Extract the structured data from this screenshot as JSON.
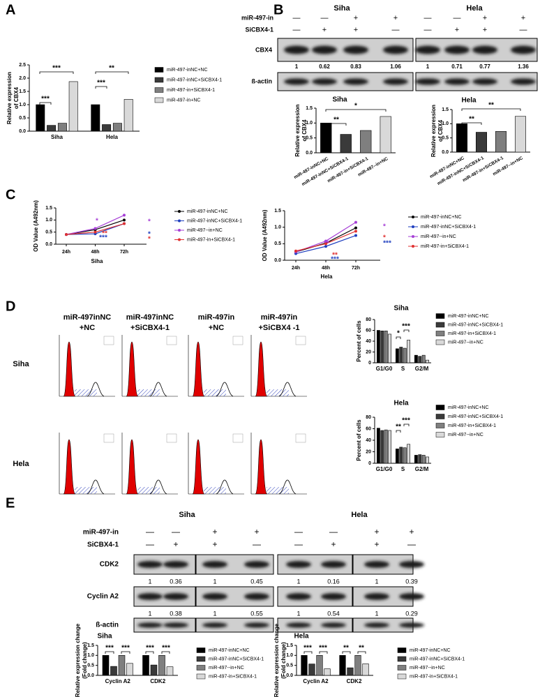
{
  "panel_labels": [
    "A",
    "B",
    "C",
    "D",
    "E"
  ],
  "blot_b": {
    "row_labels": [
      "miR-497-in",
      "SiCBX4-1"
    ],
    "cell_lines": [
      "Siha",
      "Hela"
    ],
    "mir_signs": [
      "—",
      "—",
      "+",
      "+",
      "—",
      "—",
      "+",
      "+"
    ],
    "si_signs": [
      "—",
      "+",
      "+",
      "—",
      "—",
      "+",
      "+",
      "—"
    ],
    "proteins": [
      "CBX4",
      "ß-actin"
    ],
    "ratios": [
      1,
      0.62,
      0.83,
      1.06,
      1,
      0.71,
      0.77,
      1.36
    ]
  },
  "flow_d": {
    "columns": [
      [
        "miR-497inNC",
        "+NC"
      ],
      [
        "miR-497inNC",
        "+SiCBX4-1"
      ],
      [
        "miR-497in",
        "+NC"
      ],
      [
        "miR-497in",
        "+SiCBX4 -1"
      ]
    ],
    "rows": [
      "Siha",
      "Hela"
    ]
  },
  "blot_e": {
    "row_labels": [
      "miR-497-in",
      "SiCBX4-1"
    ],
    "cell_lines": [
      "Siha",
      "Hela"
    ],
    "mir_signs": [
      "—",
      "—",
      "+",
      "+",
      "—",
      "—",
      "+",
      "+"
    ],
    "si_signs": [
      "—",
      "+",
      "+",
      "—",
      "—",
      "+",
      "+",
      "—"
    ],
    "proteins": [
      "CDK2",
      "Cyclin A2",
      "ß-actin"
    ],
    "ratios": [
      [
        1,
        0.36,
        1,
        0.45,
        1,
        0.16,
        1,
        0.39
      ],
      [
        1,
        0.38,
        1,
        0.55,
        1,
        0.54,
        1,
        0.29
      ]
    ]
  },
  "chart_data": [
    {
      "type": "bar",
      "ylabel": [
        "Relative expression",
        "of CBX4"
      ],
      "categories": [
        "Siha",
        "Hela"
      ],
      "series": [
        {
          "name": "miR-497-inNC+NC",
          "color": "#000000",
          "values": [
            1,
            1
          ]
        },
        {
          "name": "miR-497-inNC+SiCBX4-1",
          "color": "#3a3a3a",
          "values": [
            0.22,
            0.25
          ]
        },
        {
          "name": "miR-497-in+SiCBX4-1",
          "color": "#7f7f7f",
          "values": [
            0.3,
            0.3
          ]
        },
        {
          "name": "miR-497-in+NC",
          "color": "#d9d9d9",
          "values": [
            1.87,
            1.2
          ]
        }
      ],
      "ylim": [
        0,
        2.5
      ],
      "yticks": [
        {
          "value": 0,
          "label": "0.0"
        },
        0.5,
        {
          "value": 1,
          "label": "1.0"
        },
        1.5,
        {
          "value": 2,
          "label": "2.0"
        },
        2.5
      ],
      "legend": "right",
      "annotations": [
        "***",
        "***",
        "***",
        "**"
      ]
    },
    {
      "type": "bar",
      "title": "Siha",
      "ylabel": [
        "Relative expression",
        "of CBX4"
      ],
      "categories": [
        "miR-497-inNC+NC",
        "miR-497-inNC+SiCBX4-1",
        "miR-497-in+SiCBX4-1",
        "miR-497--in+NC"
      ],
      "values": [
        1,
        0.62,
        0.75,
        1.22
      ],
      "colors": [
        "#000000",
        "#3a3a3a",
        "#7f7f7f",
        "#d9d9d9"
      ],
      "ylim": [
        0,
        1.5
      ],
      "yticks": [
        {
          "value": 0,
          "label": "0.0"
        },
        0.5,
        {
          "value": 1,
          "label": "1.0"
        },
        1.5
      ],
      "annotations": [
        "**",
        "*"
      ]
    },
    {
      "type": "bar",
      "title": "Hela",
      "ylabel": [
        "Relative expression",
        "of CBX4"
      ],
      "categories": [
        "miR-497-inNC+NC",
        "miR-497-inNC+SiCBX4-1",
        "miR-497-in+SiCBX4-1",
        "miR-497--in+NC"
      ],
      "values": [
        1,
        0.7,
        0.73,
        1.26
      ],
      "colors": [
        "#000000",
        "#3a3a3a",
        "#7f7f7f",
        "#d9d9d9"
      ],
      "ylim": [
        0,
        1.5
      ],
      "yticks": [
        {
          "value": 0,
          "label": "0.0"
        },
        0.5,
        {
          "value": 1,
          "label": "1.0"
        },
        1.5
      ],
      "annotations": [
        "**",
        "**"
      ]
    },
    {
      "type": "line",
      "ylabel": [
        "OD Value (A492nm)"
      ],
      "xlabel": "Siha",
      "categories": [
        "24h",
        "48h",
        "72h"
      ],
      "series": [
        {
          "name": "miR-497-inNC+NC",
          "color": "#000000",
          "values": [
            0.4,
            0.6,
            1.0
          ]
        },
        {
          "name": "miR-497-inNC+SiCBX4-1",
          "color": "#1f3fbf",
          "values": [
            0.4,
            0.43,
            0.85
          ]
        },
        {
          "name": "miR-497--in+NC",
          "color": "#a63fd6",
          "values": [
            0.4,
            0.65,
            1.2
          ]
        },
        {
          "name": "miR-497-in+SiCBX4-1",
          "color": "#e03030",
          "values": [
            0.4,
            0.5,
            0.85
          ]
        }
      ],
      "ylim": [
        0,
        1.5
      ],
      "yticks": [
        {
          "value": 0,
          "label": "0.0"
        },
        0.5,
        {
          "value": 1,
          "label": "1.0"
        },
        1.5
      ],
      "legend": "right",
      "annotations": [
        {
          "text": "*",
          "color": "#a63fd6"
        },
        {
          "text": "**",
          "color": "#e03030"
        },
        {
          "text": "***",
          "color": "#1f3fbf"
        },
        {
          "text": "*",
          "color": "#a63fd6"
        },
        {
          "text": "*",
          "color": "#1f3fbf"
        },
        {
          "text": "*",
          "color": "#e03030"
        }
      ]
    },
    {
      "type": "line",
      "ylabel": [
        "OD Value (A492nm)"
      ],
      "xlabel": "Hela",
      "categories": [
        "24h",
        "48h",
        "72h"
      ],
      "series": [
        {
          "name": "miR-497-inNC+NC",
          "color": "#000000",
          "values": [
            0.25,
            0.52,
            0.98
          ]
        },
        {
          "name": "miR-497-inNC+SiCBX4-1",
          "color": "#1f3fbf",
          "values": [
            0.2,
            0.42,
            0.75
          ]
        },
        {
          "name": "miR-497--in+NC",
          "color": "#a63fd6",
          "values": [
            0.25,
            0.58,
            1.15
          ]
        },
        {
          "name": "miR-497-in+SiCBX4-1",
          "color": "#e03030",
          "values": [
            0.28,
            0.5,
            0.88
          ]
        }
      ],
      "ylim": [
        0,
        1.5
      ],
      "yticks": [
        {
          "value": 0,
          "label": "0.0"
        },
        0.5,
        {
          "value": 1,
          "label": "1.0"
        },
        1.5
      ],
      "legend": "right",
      "annotations": [
        {
          "text": "**",
          "color": "#a63fd6"
        },
        {
          "text": "**",
          "color": "#e03030"
        },
        {
          "text": "***",
          "color": "#1f3fbf"
        },
        {
          "text": "*",
          "color": "#a63fd6"
        },
        {
          "text": "*",
          "color": "#e03030"
        },
        {
          "text": "***",
          "color": "#1f3fbf"
        }
      ]
    },
    {
      "type": "bar",
      "title": "Siha",
      "ylabel": [
        "Percent of cells"
      ],
      "categories": [
        "G1/G0",
        "S",
        "G2/M"
      ],
      "series": [
        {
          "name": "miR-497-inNC+NC",
          "color": "#000000",
          "values": [
            60,
            26,
            14
          ]
        },
        {
          "name": "miR-497-inNC+SiCBX4-1",
          "color": "#3a3a3a",
          "values": [
            59,
            29,
            12
          ]
        },
        {
          "name": "miR-497-in+SiCBX4-1",
          "color": "#7f7f7f",
          "values": [
            59,
            27,
            14
          ]
        },
        {
          "name": "miR-497--in+NC",
          "color": "#d9d9d9",
          "values": [
            53,
            42,
            5
          ]
        }
      ],
      "ylim": [
        0,
        80
      ],
      "yticks": [
        0,
        20,
        40,
        60,
        80
      ],
      "legend": "right",
      "annotations": [
        "*",
        "***"
      ]
    },
    {
      "type": "bar",
      "title": "Hela",
      "ylabel": [
        "Percent of cells"
      ],
      "categories": [
        "G1/G0",
        "S",
        "G2/M"
      ],
      "series": [
        {
          "name": "miR-497-inNC+NC",
          "color": "#000000",
          "values": [
            61,
            25,
            14
          ]
        },
        {
          "name": "miR-497-inNC+SiCBX4-1",
          "color": "#3a3a3a",
          "values": [
            57,
            28,
            15
          ]
        },
        {
          "name": "miR-497-in+SiCBX4-1",
          "color": "#7f7f7f",
          "values": [
            58,
            27,
            14
          ]
        },
        {
          "name": "miR-497--in+NC",
          "color": "#d9d9d9",
          "values": [
            57,
            33,
            11
          ]
        }
      ],
      "ylim": [
        0,
        80
      ],
      "yticks": [
        0,
        20,
        40,
        60,
        80
      ],
      "legend": "right",
      "annotations": [
        "**",
        "***"
      ]
    },
    {
      "type": "bar",
      "title": "Siha",
      "ylabel": [
        "Relative expression change",
        "(Fold change)"
      ],
      "categories": [
        "Cyclin A2",
        "CDK2"
      ],
      "series": [
        {
          "name": "miR-497-inNC+NC",
          "color": "#000000",
          "values": [
            1,
            1
          ]
        },
        {
          "name": "miR-497-inNC+SiCBX4-1",
          "color": "#3a3a3a",
          "values": [
            0.45,
            0.52
          ]
        },
        {
          "name": "miR-497--in+NC",
          "color": "#7f7f7f",
          "values": [
            1,
            1
          ]
        },
        {
          "name": "miR-497-in+SiCBX4-1",
          "color": "#d9d9d9",
          "values": [
            0.6,
            0.43
          ]
        }
      ],
      "ylim": [
        0,
        1.5
      ],
      "yticks": [
        {
          "value": 0,
          "label": "0.0"
        },
        0.5,
        {
          "value": 1,
          "label": "1.0"
        },
        1.5
      ],
      "legend": "right",
      "annotations": [
        "***",
        "***",
        "***",
        "***"
      ]
    },
    {
      "type": "bar",
      "title": "Hela",
      "ylabel": [
        "Relative expression change",
        "(Fold change)"
      ],
      "categories": [
        "Cyclin A2",
        "CDK2"
      ],
      "series": [
        {
          "name": "miR-497-inNC+NC",
          "color": "#000000",
          "values": [
            1,
            1
          ]
        },
        {
          "name": "miR-497-inNC+SiCBX4-1",
          "color": "#3a3a3a",
          "values": [
            0.57,
            0.38
          ]
        },
        {
          "name": "miR-497--in+NC",
          "color": "#7f7f7f",
          "values": [
            1,
            1
          ]
        },
        {
          "name": "miR-497-in+SiCBX4-1",
          "color": "#d9d9d9",
          "values": [
            0.33,
            0.58
          ]
        }
      ],
      "ylim": [
        0,
        1.5
      ],
      "yticks": [
        {
          "value": 0,
          "label": "0.0"
        },
        0.5,
        {
          "value": 1,
          "label": "1.0"
        },
        1.5
      ],
      "legend": "right",
      "annotations": [
        "***",
        "***",
        "**",
        "**"
      ]
    }
  ]
}
